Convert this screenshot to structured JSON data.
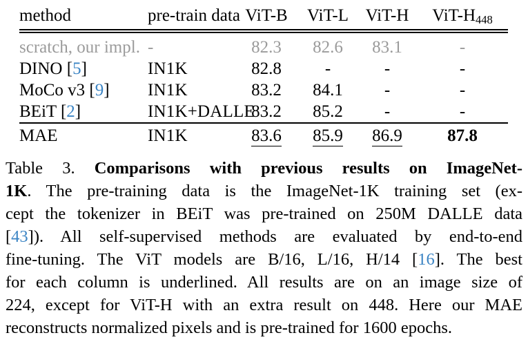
{
  "colors": {
    "citation_blue": "#3b84c4",
    "muted_gray": "#9b9b9b",
    "text_black": "#000000",
    "rule_black": "#000000"
  },
  "table": {
    "headers": [
      {
        "label": "method",
        "align": "left"
      },
      {
        "label": "pre-train data",
        "align": "left"
      },
      {
        "label": "ViT-B",
        "align": "center"
      },
      {
        "label": "ViT-L",
        "align": "center"
      },
      {
        "label": "ViT-H",
        "align": "center"
      },
      {
        "label": "ViT-H",
        "sub": "448",
        "align": "center"
      }
    ],
    "rows": [
      {
        "method": "scratch, our impl.",
        "cite": null,
        "pretrain": "-",
        "muted": true,
        "toprule": false,
        "values": [
          {
            "v": "82.3"
          },
          {
            "v": "82.6"
          },
          {
            "v": "83.1"
          },
          {
            "v": "-"
          }
        ]
      },
      {
        "method": "DINO ",
        "cite": "5",
        "pretrain": "IN1K",
        "muted": false,
        "toprule": false,
        "values": [
          {
            "v": "82.8"
          },
          {
            "v": "-"
          },
          {
            "v": "-"
          },
          {
            "v": "-"
          }
        ]
      },
      {
        "method": "MoCo v3 ",
        "cite": "9",
        "pretrain": "IN1K",
        "muted": false,
        "toprule": false,
        "values": [
          {
            "v": "83.2"
          },
          {
            "v": "84.1"
          },
          {
            "v": "-"
          },
          {
            "v": "-"
          }
        ]
      },
      {
        "method": "BEiT ",
        "cite": "2",
        "pretrain": "IN1K+DALLE",
        "muted": false,
        "toprule": false,
        "values": [
          {
            "v": "83.2"
          },
          {
            "v": "85.2"
          },
          {
            "v": "-"
          },
          {
            "v": "-"
          }
        ]
      },
      {
        "method": "MAE",
        "cite": null,
        "pretrain": "IN1K",
        "muted": false,
        "toprule": true,
        "values": [
          {
            "v": "83.6",
            "underline": true
          },
          {
            "v": "85.9",
            "underline": true
          },
          {
            "v": "86.9",
            "underline": true
          },
          {
            "v": "87.8",
            "bold": true
          }
        ]
      }
    ]
  },
  "caption": {
    "lines": [
      {
        "last": false,
        "segments": [
          {
            "t": "Table 3.  ",
            "s": "r"
          },
          {
            "t": "Comparisons with previous results on ImageNet-",
            "s": "b"
          }
        ]
      },
      {
        "last": false,
        "segments": [
          {
            "t": "1K",
            "s": "b"
          },
          {
            "t": ". The pre-training data is the ImageNet-1K training set (ex-",
            "s": "r"
          }
        ]
      },
      {
        "last": false,
        "segments": [
          {
            "t": "cept the tokenizer in BEiT was pre-trained on 250M DALLE data",
            "s": "r"
          }
        ]
      },
      {
        "last": false,
        "segments": [
          {
            "t": "[",
            "s": "r"
          },
          {
            "t": "43",
            "s": "c"
          },
          {
            "t": "]).  All self-supervised methods are evaluated by end-to-end",
            "s": "r"
          }
        ]
      },
      {
        "last": false,
        "segments": [
          {
            "t": "fine-tuning. The ViT models are B/16, L/16, H/14 [",
            "s": "r"
          },
          {
            "t": "16",
            "s": "c"
          },
          {
            "t": "]. The best",
            "s": "r"
          }
        ]
      },
      {
        "last": false,
        "segments": [
          {
            "t": "for each column is underlined. All results are on an image size of",
            "s": "r"
          }
        ]
      },
      {
        "last": false,
        "segments": [
          {
            "t": "224, except for ViT-H with an extra result on 448. Here our MAE",
            "s": "r"
          }
        ]
      },
      {
        "last": true,
        "segments": [
          {
            "t": "reconstructs normalized pixels and is pre-trained for 1600 epochs.",
            "s": "r"
          }
        ]
      }
    ]
  }
}
